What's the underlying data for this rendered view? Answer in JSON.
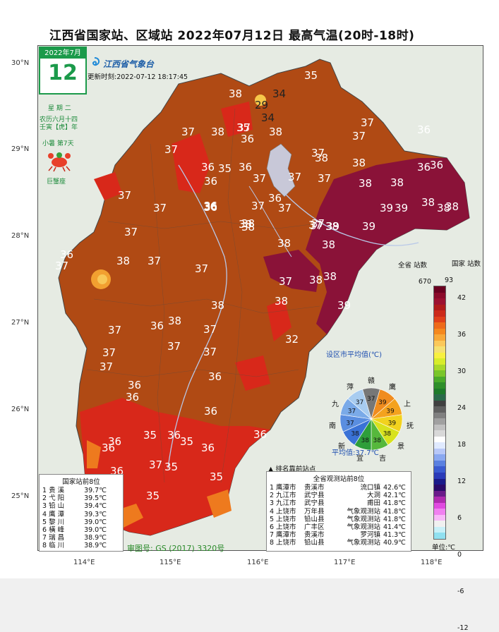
{
  "title": "江西省国家站、区域站   2022年07月12日   最高气温(20时-18时)",
  "date_card": {
    "month": "2022年7月",
    "day": "12"
  },
  "weekday": "星 期 二",
  "lunar": [
    "农历六月十四",
    "壬寅【虎】年"
  ],
  "solar_term": "小暑  第7天",
  "zodiac": "巨蟹座",
  "logo_text": "江西省气象台",
  "update_time": "更新时刻:2022-07-12  18:17:45",
  "axes": {
    "lat_labels": [
      "30°N",
      "29°N",
      "28°N",
      "27°N",
      "26°N",
      "25°N"
    ],
    "lon_labels": [
      "114°E",
      "115°E",
      "116°E",
      "117°E",
      "118°E"
    ]
  },
  "map_numbers": [
    {
      "t": "35",
      "dark": false
    },
    {
      "t": "38",
      "dark": false
    },
    {
      "t": "34",
      "dark": true
    },
    {
      "t": "29",
      "dark": true
    },
    {
      "t": "34",
      "dark": true
    },
    {
      "t": "37",
      "dark": false
    },
    {
      "t": "38",
      "dark": false
    },
    {
      "t": "37",
      "dark": false
    },
    {
      "t": "37",
      "dark": false
    },
    {
      "t": "36",
      "dark": false
    },
    {
      "t": "35",
      "dark": false
    },
    {
      "t": "36",
      "dark": false
    },
    {
      "t": "38",
      "dark": false
    },
    {
      "t": "37",
      "dark": false
    },
    {
      "t": "37",
      "dark": false
    },
    {
      "t": "38",
      "dark": false
    },
    {
      "t": "37",
      "dark": false
    },
    {
      "t": "36",
      "dark": false
    },
    {
      "t": "35",
      "dark": false
    },
    {
      "t": "36",
      "dark": false
    },
    {
      "t": "36",
      "dark": false
    },
    {
      "t": "37",
      "dark": false
    },
    {
      "t": "37",
      "dark": false
    },
    {
      "t": "38",
      "dark": false
    },
    {
      "t": "36",
      "dark": false
    },
    {
      "t": "36",
      "dark": false
    },
    {
      "t": "38",
      "dark": false
    },
    {
      "t": "38",
      "dark": false
    },
    {
      "t": "37",
      "dark": false
    },
    {
      "t": "36",
      "dark": false
    },
    {
      "t": "37",
      "dark": false
    },
    {
      "t": "36",
      "dark": false
    },
    {
      "t": "37",
      "dark": false
    },
    {
      "t": "38",
      "dark": false
    },
    {
      "t": "37",
      "dark": false
    },
    {
      "t": "37",
      "dark": false
    },
    {
      "t": "38",
      "dark": false
    },
    {
      "t": "39",
      "dark": false
    },
    {
      "t": "39",
      "dark": false
    },
    {
      "t": "39",
      "dark": false
    },
    {
      "t": "38",
      "dark": false
    },
    {
      "t": "38",
      "dark": false
    },
    {
      "t": "38",
      "dark": false
    },
    {
      "t": "39",
      "dark": false
    },
    {
      "t": "36",
      "dark": false
    },
    {
      "t": "37",
      "dark": false
    },
    {
      "t": "37",
      "dark": false
    },
    {
      "t": "36",
      "dark": false
    },
    {
      "t": "37",
      "dark": false
    },
    {
      "t": "38",
      "dark": false
    },
    {
      "t": "38",
      "dark": false
    },
    {
      "t": "38",
      "dark": false
    },
    {
      "t": "37",
      "dark": false
    },
    {
      "t": "37",
      "dark": false
    },
    {
      "t": "38",
      "dark": false
    },
    {
      "t": "36",
      "dark": false
    },
    {
      "t": "37",
      "dark": false
    },
    {
      "t": "38",
      "dark": false
    },
    {
      "t": "38",
      "dark": false
    },
    {
      "t": "38",
      "dark": false
    },
    {
      "t": "38",
      "dark": false
    },
    {
      "t": "37",
      "dark": false
    },
    {
      "t": "37",
      "dark": false
    },
    {
      "t": "39",
      "dark": false
    },
    {
      "t": "38",
      "dark": false
    },
    {
      "t": "36",
      "dark": false
    },
    {
      "t": "38",
      "dark": false
    },
    {
      "t": "37",
      "dark": false
    },
    {
      "t": "37",
      "dark": false
    },
    {
      "t": "37",
      "dark": false
    },
    {
      "t": "32",
      "dark": false
    },
    {
      "t": "36",
      "dark": false
    },
    {
      "t": "37",
      "dark": false
    },
    {
      "t": "36",
      "dark": false
    },
    {
      "t": "37",
      "dark": false
    },
    {
      "t": "37",
      "dark": false
    },
    {
      "t": "36",
      "dark": false
    },
    {
      "t": "36",
      "dark": false
    },
    {
      "t": "37",
      "dark": false
    },
    {
      "t": "36",
      "dark": false
    },
    {
      "t": "36",
      "dark": false
    },
    {
      "t": "36",
      "dark": false
    },
    {
      "t": "36",
      "dark": false
    },
    {
      "t": "36",
      "dark": false
    },
    {
      "t": "35",
      "dark": false
    },
    {
      "t": "35",
      "dark": false
    },
    {
      "t": "35",
      "dark": false
    },
    {
      "t": "36",
      "dark": false
    },
    {
      "t": "35",
      "dark": false
    },
    {
      "t": "35",
      "dark": false
    }
  ],
  "city_avg": {
    "title": "设区市平均值(℃)",
    "value_text": "平均值:37.7℃",
    "sectors": [
      {
        "name": "赣",
        "value": "37",
        "color": "#777777"
      },
      {
        "name": "鹰",
        "value": "39",
        "color": "#f08c1e"
      },
      {
        "name": "上",
        "value": "39",
        "color": "#f4a21e"
      },
      {
        "name": "抚",
        "value": "39",
        "color": "#f2d21e"
      },
      {
        "name": "景",
        "value": "38",
        "color": "#d8e21e"
      },
      {
        "name": "吉",
        "value": "38",
        "color": "#56b83c"
      },
      {
        "name": "宜",
        "value": "38",
        "color": "#2e9e3a"
      },
      {
        "name": "新",
        "value": "38",
        "color": "#3a72d6"
      },
      {
        "name": "南",
        "value": "37",
        "color": "#5a8ee0"
      },
      {
        "name": "九",
        "value": "37",
        "color": "#7aaae8"
      },
      {
        "name": "萍",
        "value": "37",
        "color": "#a8ccf0"
      }
    ]
  },
  "colorbar": {
    "all_label": "全省\n站数",
    "nat_label": "国家\n站数",
    "all_count": "670",
    "nat_count": "93",
    "ticks": [
      "42",
      "36",
      "30",
      "24",
      "18",
      "12",
      "6",
      "0",
      "-6",
      "-12"
    ],
    "unit": "单位:℃",
    "colors": [
      "#6a0020",
      "#8b0a2a",
      "#9c1030",
      "#b01a1a",
      "#cc2a1a",
      "#e0401a",
      "#ee6a1a",
      "#f5881e",
      "#f8a838",
      "#fbc85a",
      "#f5e070",
      "#f8f040",
      "#d8ec2a",
      "#a8d82a",
      "#7ac62a",
      "#4aaa2a",
      "#2e8e2a",
      "#1e7a2a",
      "#2a6a4a",
      "#404040",
      "#606060",
      "#808080",
      "#a0a0a0",
      "#c0c0c0",
      "#d8d8d8",
      "#ffffff",
      "#e0eaff",
      "#b8c8f8",
      "#8aa8f0",
      "#5a80e0",
      "#3a5ad0",
      "#2a3ab8",
      "#1a1a8a",
      "#2a0a6a",
      "#6a1a8a",
      "#b02ab0",
      "#e04ae0",
      "#f080f0",
      "#f8b8f8",
      "#f0f0f0",
      "#c8f0f8",
      "#90e0f0"
    ]
  },
  "national_top8": {
    "title": "国家站前8位",
    "rows": [
      {
        "rank": "1",
        "name": "贵   溪",
        "value": "39.7℃"
      },
      {
        "rank": "2",
        "name": "弋   阳",
        "value": "39.5℃"
      },
      {
        "rank": "3",
        "name": "铅   山",
        "value": "39.4℃"
      },
      {
        "rank": "4",
        "name": "鹰   潭",
        "value": "39.3℃"
      },
      {
        "rank": "5",
        "name": "黎   川",
        "value": "39.0℃"
      },
      {
        "rank": "6",
        "name": "橫   峰",
        "value": "39.0℃"
      },
      {
        "rank": "7",
        "name": "瑞   昌",
        "value": "38.9℃"
      },
      {
        "rank": "8",
        "name": "临   川",
        "value": "38.9℃"
      }
    ]
  },
  "province_top8": {
    "mark": "▲  排名靠前站点",
    "title": "全省观测站前8位",
    "rows": [
      {
        "rank": "1",
        "city": "鹰潭市",
        "county": "贵溪市",
        "station": "流口镇",
        "value": "42.6℃"
      },
      {
        "rank": "2",
        "city": "九江市",
        "county": "武宁县",
        "station": "大洞",
        "value": "42.1℃"
      },
      {
        "rank": "3",
        "city": "九江市",
        "county": "武宁县",
        "station": "甫田",
        "value": "41.8℃"
      },
      {
        "rank": "4",
        "city": "上饶市",
        "county": "万年县",
        "station": "气象观测站",
        "value": "41.8℃"
      },
      {
        "rank": "5",
        "city": "上饶市",
        "county": "铅山县",
        "station": "气象观测站",
        "value": "41.8℃"
      },
      {
        "rank": "6",
        "city": "上饶市",
        "county": "广丰区",
        "station": "气象观测站",
        "value": "41.4℃"
      },
      {
        "rank": "7",
        "city": "鹰潭市",
        "county": "贵溪市",
        "station": "罗河镇",
        "value": "41.3℃"
      },
      {
        "rank": "8",
        "city": "上饶市",
        "county": "铅山县",
        "station": "气象观测站",
        "value": "40.9℃"
      }
    ]
  },
  "approval": "审图号: GS (2017) 3320号"
}
